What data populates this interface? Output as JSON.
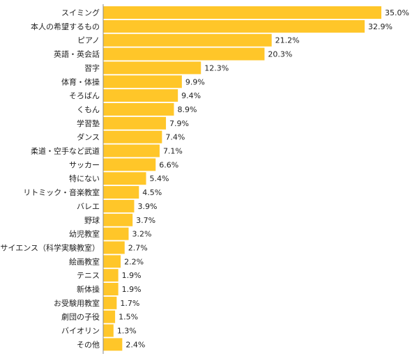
{
  "chart_data": {
    "type": "bar",
    "orientation": "horizontal",
    "categories": [
      "スイミング",
      "本人の希望するもの",
      "ピアノ",
      "英語・英会話",
      "習字",
      "体育・体操",
      "そろばん",
      "くもん",
      "学習塾",
      "ダンス",
      "柔道・空手など武道",
      "サッカー",
      "特にない",
      "リトミック・音楽教室",
      "バレエ",
      "野球",
      "幼児教室",
      "サイエンス（科学実験教室）",
      "絵画教室",
      "テニス",
      "新体操",
      "お受験用教室",
      "劇団の子役",
      "バイオリン",
      "その他"
    ],
    "values": [
      35.0,
      32.9,
      21.2,
      20.3,
      12.3,
      9.9,
      9.4,
      8.9,
      7.9,
      7.4,
      7.1,
      6.6,
      5.4,
      4.5,
      3.9,
      3.7,
      3.2,
      2.7,
      2.2,
      1.9,
      1.9,
      1.7,
      1.5,
      1.3,
      2.4
    ],
    "value_labels": [
      "35.0%",
      "32.9%",
      "21.2%",
      "20.3%",
      "12.3%",
      "9.9%",
      "9.4%",
      "8.9%",
      "7.9%",
      "7.4%",
      "7.1%",
      "6.6%",
      "5.4%",
      "4.5%",
      "3.9%",
      "3.7%",
      "3.2%",
      "2.7%",
      "2.2%",
      "1.9%",
      "1.9%",
      "1.7%",
      "1.5%",
      "1.3%",
      "2.4%"
    ],
    "unit": "%",
    "xlim": [
      0,
      35.0
    ],
    "grid": false,
    "legend": "none",
    "bar_color": "#FFC629",
    "axis_color": "#888888"
  }
}
